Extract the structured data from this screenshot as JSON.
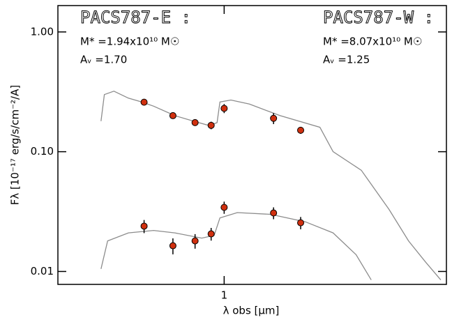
{
  "chart_data": {
    "type": "scatter",
    "xlog": true,
    "ylog": true,
    "xlim": [
      0.3,
      5
    ],
    "ylim": [
      0.0078,
      1.66
    ],
    "xticks": [
      1
    ],
    "yticks": [
      {
        "value": 0.01,
        "label": "0.01"
      },
      {
        "value": 0.1,
        "label": "0.10"
      },
      {
        "value": 1,
        "label": "1.00"
      }
    ],
    "xlabel": "λ obs [μm]",
    "ylabel": "Fλ [10⁻¹⁷ erg/s/cm⁻²/A]",
    "annotations": [
      "PACS787-E :",
      "M* =1.94x10¹⁰ M☉",
      "Aᵥ =1.70",
      "PACS787-W :",
      "M* =8.07x10¹⁰ M☉",
      "Aᵥ =1.25"
    ],
    "models": [
      {
        "color": "#8c8c8c",
        "x": [
          0.41,
          0.42,
          0.45,
          0.5,
          0.55,
          0.6,
          0.7,
          0.8,
          0.9,
          0.95,
          0.97,
          1.05,
          1.2,
          1.5,
          2.0,
          2.2,
          2.7,
          3.3,
          3.8,
          4.3,
          4.8
        ],
        "values": [
          0.18,
          0.3,
          0.32,
          0.28,
          0.26,
          0.24,
          0.2,
          0.18,
          0.165,
          0.175,
          0.26,
          0.27,
          0.25,
          0.2,
          0.16,
          0.1,
          0.07,
          0.033,
          0.018,
          0.012,
          0.0085
        ]
      },
      {
        "color": "#8c8c8c",
        "x": [
          0.41,
          0.43,
          0.5,
          0.6,
          0.7,
          0.85,
          0.93,
          0.97,
          1.1,
          1.4,
          1.8,
          2.2,
          2.6,
          2.9
        ],
        "values": [
          0.0105,
          0.018,
          0.021,
          0.022,
          0.021,
          0.019,
          0.02,
          0.028,
          0.031,
          0.03,
          0.026,
          0.021,
          0.0138,
          0.0085
        ]
      }
    ],
    "series": [
      {
        "color": "#d0300f",
        "x": [
          0.56,
          0.69,
          0.81,
          0.91,
          1.0,
          1.43,
          1.74
        ],
        "values": [
          0.259,
          0.2,
          0.175,
          0.166,
          0.23,
          0.19,
          0.151
        ],
        "errors": [
          0.012,
          0.012,
          0.01,
          0.012,
          0.02,
          0.02,
          0.01
        ]
      },
      {
        "color": "#d0300f",
        "x": [
          0.56,
          0.69,
          0.81,
          0.91,
          1.0,
          1.43,
          1.74
        ],
        "values": [
          0.0239,
          0.0164,
          0.018,
          0.0206,
          0.0343,
          0.0308,
          0.0255
        ],
        "errors": [
          0.003,
          0.0025,
          0.0025,
          0.0025,
          0.004,
          0.0035,
          0.003
        ]
      }
    ]
  }
}
